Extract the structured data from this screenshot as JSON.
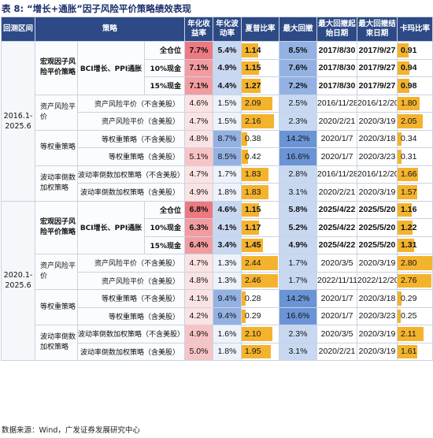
{
  "title": "表 8: “增长+通胀”因子风险平价策略绩效表现",
  "source": "数据来源：Wind，广发证券发展研究中心",
  "headers": {
    "period": "回测区间",
    "strategy": "策略",
    "ann_return": "年化收益率",
    "ann_vol": "年化波动率",
    "sharpe": "夏普比率",
    "max_dd": "最大回撤",
    "dd_start": "最大回撤起始日期",
    "dd_end": "最大回撤结束日期",
    "calmar": "卡玛比率"
  },
  "colors": {
    "header_bg": "#2d4a87",
    "bar_fill": "#f4b32d",
    "red_scale": [
      "#fbe3e3",
      "#f7c4c6",
      "#f29ca0",
      "#ec7a80"
    ],
    "blue_scale": [
      "#eef3fb",
      "#c8d8f1",
      "#93b2e3",
      "#6b94d6"
    ]
  },
  "sections": [
    {
      "period": "2016.1-2025.6",
      "groups": [
        {
          "name": "宏观因子风险平价策略",
          "bold": true,
          "subname": "BCI增长、PPI通胀",
          "rows": [
            {
              "label": "全仓位",
              "ret": "7.7%",
              "vol": "5.4%",
              "sharpe": "1.14",
              "dd": "8.5%",
              "start": "2017/8/30",
              "end": "2017/9/27",
              "calmar": "0.91",
              "ret_lvl": 3,
              "vol_lvl": 1,
              "sharpe_v": 1.14,
              "dd_v": 8.5,
              "calmar_v": 0.91
            },
            {
              "label": "10%现金",
              "ret": "7.1%",
              "vol": "4.9%",
              "sharpe": "1.15",
              "dd": "7.6%",
              "start": "2017/8/30",
              "end": "2017/9/27",
              "calmar": "0.94",
              "ret_lvl": 2,
              "vol_lvl": 1,
              "sharpe_v": 1.15,
              "dd_v": 7.6,
              "calmar_v": 0.94
            },
            {
              "label": "15%现金",
              "ret": "7.1%",
              "vol": "4.4%",
              "sharpe": "1.27",
              "dd": "7.2%",
              "start": "2017/8/30",
              "end": "2017/9/27",
              "calmar": "0.98",
              "ret_lvl": 2,
              "vol_lvl": 1,
              "sharpe_v": 1.27,
              "dd_v": 7.2,
              "calmar_v": 0.98
            }
          ]
        },
        {
          "name": "资产风险平价",
          "bold": false,
          "rows": [
            {
              "label": "资产风险平价（不含美股）",
              "ret": "4.6%",
              "vol": "1.5%",
              "sharpe": "2.09",
              "dd": "2.5%",
              "start": "2016/11/28",
              "end": "2016/12/20",
              "calmar": "1.80",
              "ret_lvl": 0,
              "vol_lvl": 0,
              "sharpe_v": 2.09,
              "dd_v": 2.5,
              "calmar_v": 1.8
            },
            {
              "label": "资产风险平价（含美股）",
              "ret": "4.7%",
              "vol": "1.5%",
              "sharpe": "2.16",
              "dd": "2.3%",
              "start": "2020/2/21",
              "end": "2020/3/19",
              "calmar": "2.05",
              "ret_lvl": 0,
              "vol_lvl": 0,
              "sharpe_v": 2.16,
              "dd_v": 2.3,
              "calmar_v": 2.05
            }
          ]
        },
        {
          "name": "等权重策略",
          "bold": false,
          "rows": [
            {
              "label": "等权重策略（不含美股）",
              "ret": "4.8%",
              "vol": "8.7%",
              "sharpe": "0.38",
              "dd": "14.2%",
              "start": "2020/1/7",
              "end": "2020/3/18",
              "calmar": "0.34",
              "ret_lvl": 0,
              "vol_lvl": 2,
              "sharpe_v": 0.38,
              "dd_v": 14.2,
              "calmar_v": 0.34
            },
            {
              "label": "等权重策略（含美股）",
              "ret": "5.1%",
              "vol": "8.5%",
              "sharpe": "0.42",
              "dd": "16.6%",
              "start": "2020/1/7",
              "end": "2020/3/23",
              "calmar": "0.31",
              "ret_lvl": 1,
              "vol_lvl": 2,
              "sharpe_v": 0.42,
              "dd_v": 16.6,
              "calmar_v": 0.31
            }
          ]
        },
        {
          "name": "波动率倒数加权策略",
          "bold": false,
          "rows": [
            {
              "label": "波动率倒数加权策略（不含美股）",
              "ret": "4.7%",
              "vol": "1.7%",
              "sharpe": "1.83",
              "dd": "2.8%",
              "start": "2016/11/28",
              "end": "2016/12/20",
              "calmar": "1.66",
              "ret_lvl": 0,
              "vol_lvl": 0,
              "sharpe_v": 1.83,
              "dd_v": 2.8,
              "calmar_v": 1.66
            },
            {
              "label": "波动率倒数加权策略（含美股）",
              "ret": "4.9%",
              "vol": "1.8%",
              "sharpe": "1.83",
              "dd": "3.1%",
              "start": "2020/2/21",
              "end": "2020/3/19",
              "calmar": "1.57",
              "ret_lvl": 0,
              "vol_lvl": 0,
              "sharpe_v": 1.83,
              "dd_v": 3.1,
              "calmar_v": 1.57
            }
          ]
        }
      ]
    },
    {
      "period": "2020.1-2025.6",
      "groups": [
        {
          "name": "宏观因子风险平价策略",
          "bold": true,
          "subname": "BCI增长、PPI通胀",
          "rows": [
            {
              "label": "全仓位",
              "ret": "6.8%",
              "vol": "4.6%",
              "sharpe": "1.15",
              "dd": "5.8%",
              "start": "2025/4/22",
              "end": "2025/5/20",
              "calmar": "1.16",
              "ret_lvl": 3,
              "vol_lvl": 1,
              "sharpe_v": 1.15,
              "dd_v": 5.8,
              "calmar_v": 1.16
            },
            {
              "label": "10%现金",
              "ret": "6.3%",
              "vol": "4.1%",
              "sharpe": "1.17",
              "dd": "5.2%",
              "start": "2025/4/22",
              "end": "2025/5/20",
              "calmar": "1.22",
              "ret_lvl": 2,
              "vol_lvl": 1,
              "sharpe_v": 1.17,
              "dd_v": 5.2,
              "calmar_v": 1.22
            },
            {
              "label": "15%现金",
              "ret": "6.4%",
              "vol": "3.4%",
              "sharpe": "1.45",
              "dd": "4.9%",
              "start": "2025/4/22",
              "end": "2025/5/20",
              "calmar": "1.31",
              "ret_lvl": 2,
              "vol_lvl": 1,
              "sharpe_v": 1.45,
              "dd_v": 4.9,
              "calmar_v": 1.31
            }
          ]
        },
        {
          "name": "资产风险平价",
          "bold": false,
          "rows": [
            {
              "label": "资产风险平价（不含美股）",
              "ret": "4.7%",
              "vol": "1.3%",
              "sharpe": "2.44",
              "dd": "1.7%",
              "start": "2020/3/5",
              "end": "2020/3/19",
              "calmar": "2.80",
              "ret_lvl": 0,
              "vol_lvl": 0,
              "sharpe_v": 2.44,
              "dd_v": 1.7,
              "calmar_v": 2.8
            },
            {
              "label": "资产风险平价（含美股）",
              "ret": "4.8%",
              "vol": "1.3%",
              "sharpe": "2.46",
              "dd": "1.7%",
              "start": "2022/11/11",
              "end": "2022/12/20",
              "calmar": "2.76",
              "ret_lvl": 0,
              "vol_lvl": 0,
              "sharpe_v": 2.46,
              "dd_v": 1.7,
              "calmar_v": 2.76
            }
          ]
        },
        {
          "name": "等权重策略",
          "bold": false,
          "rows": [
            {
              "label": "等权重策略（不含美股）",
              "ret": "4.1%",
              "vol": "9.4%",
              "sharpe": "0.28",
              "dd": "14.2%",
              "start": "2020/1/7",
              "end": "2020/3/18",
              "calmar": "0.29",
              "ret_lvl": 0,
              "vol_lvl": 2,
              "sharpe_v": 0.28,
              "dd_v": 14.2,
              "calmar_v": 0.29
            },
            {
              "label": "等权重策略（含美股）",
              "ret": "4.2%",
              "vol": "9.4%",
              "sharpe": "0.29",
              "dd": "16.6%",
              "start": "2020/1/7",
              "end": "2020/3/23",
              "calmar": "0.25",
              "ret_lvl": 0,
              "vol_lvl": 2,
              "sharpe_v": 0.29,
              "dd_v": 16.6,
              "calmar_v": 0.25
            }
          ]
        },
        {
          "name": "波动率倒数加权策略",
          "bold": false,
          "rows": [
            {
              "label": "波动率倒数加权策略（不含美股）",
              "ret": "4.9%",
              "vol": "1.6%",
              "sharpe": "2.10",
              "dd": "2.3%",
              "start": "2020/3/5",
              "end": "2020/3/19",
              "calmar": "2.11",
              "ret_lvl": 1,
              "vol_lvl": 0,
              "sharpe_v": 2.1,
              "dd_v": 2.3,
              "calmar_v": 2.11
            },
            {
              "label": "波动率倒数加权策略（含美股）",
              "ret": "5.0%",
              "vol": "1.8%",
              "sharpe": "1.95",
              "dd": "3.1%",
              "start": "2020/2/21",
              "end": "2020/3/19",
              "calmar": "1.61",
              "ret_lvl": 1,
              "vol_lvl": 0,
              "sharpe_v": 1.95,
              "dd_v": 3.1,
              "calmar_v": 1.61
            }
          ]
        }
      ]
    }
  ]
}
